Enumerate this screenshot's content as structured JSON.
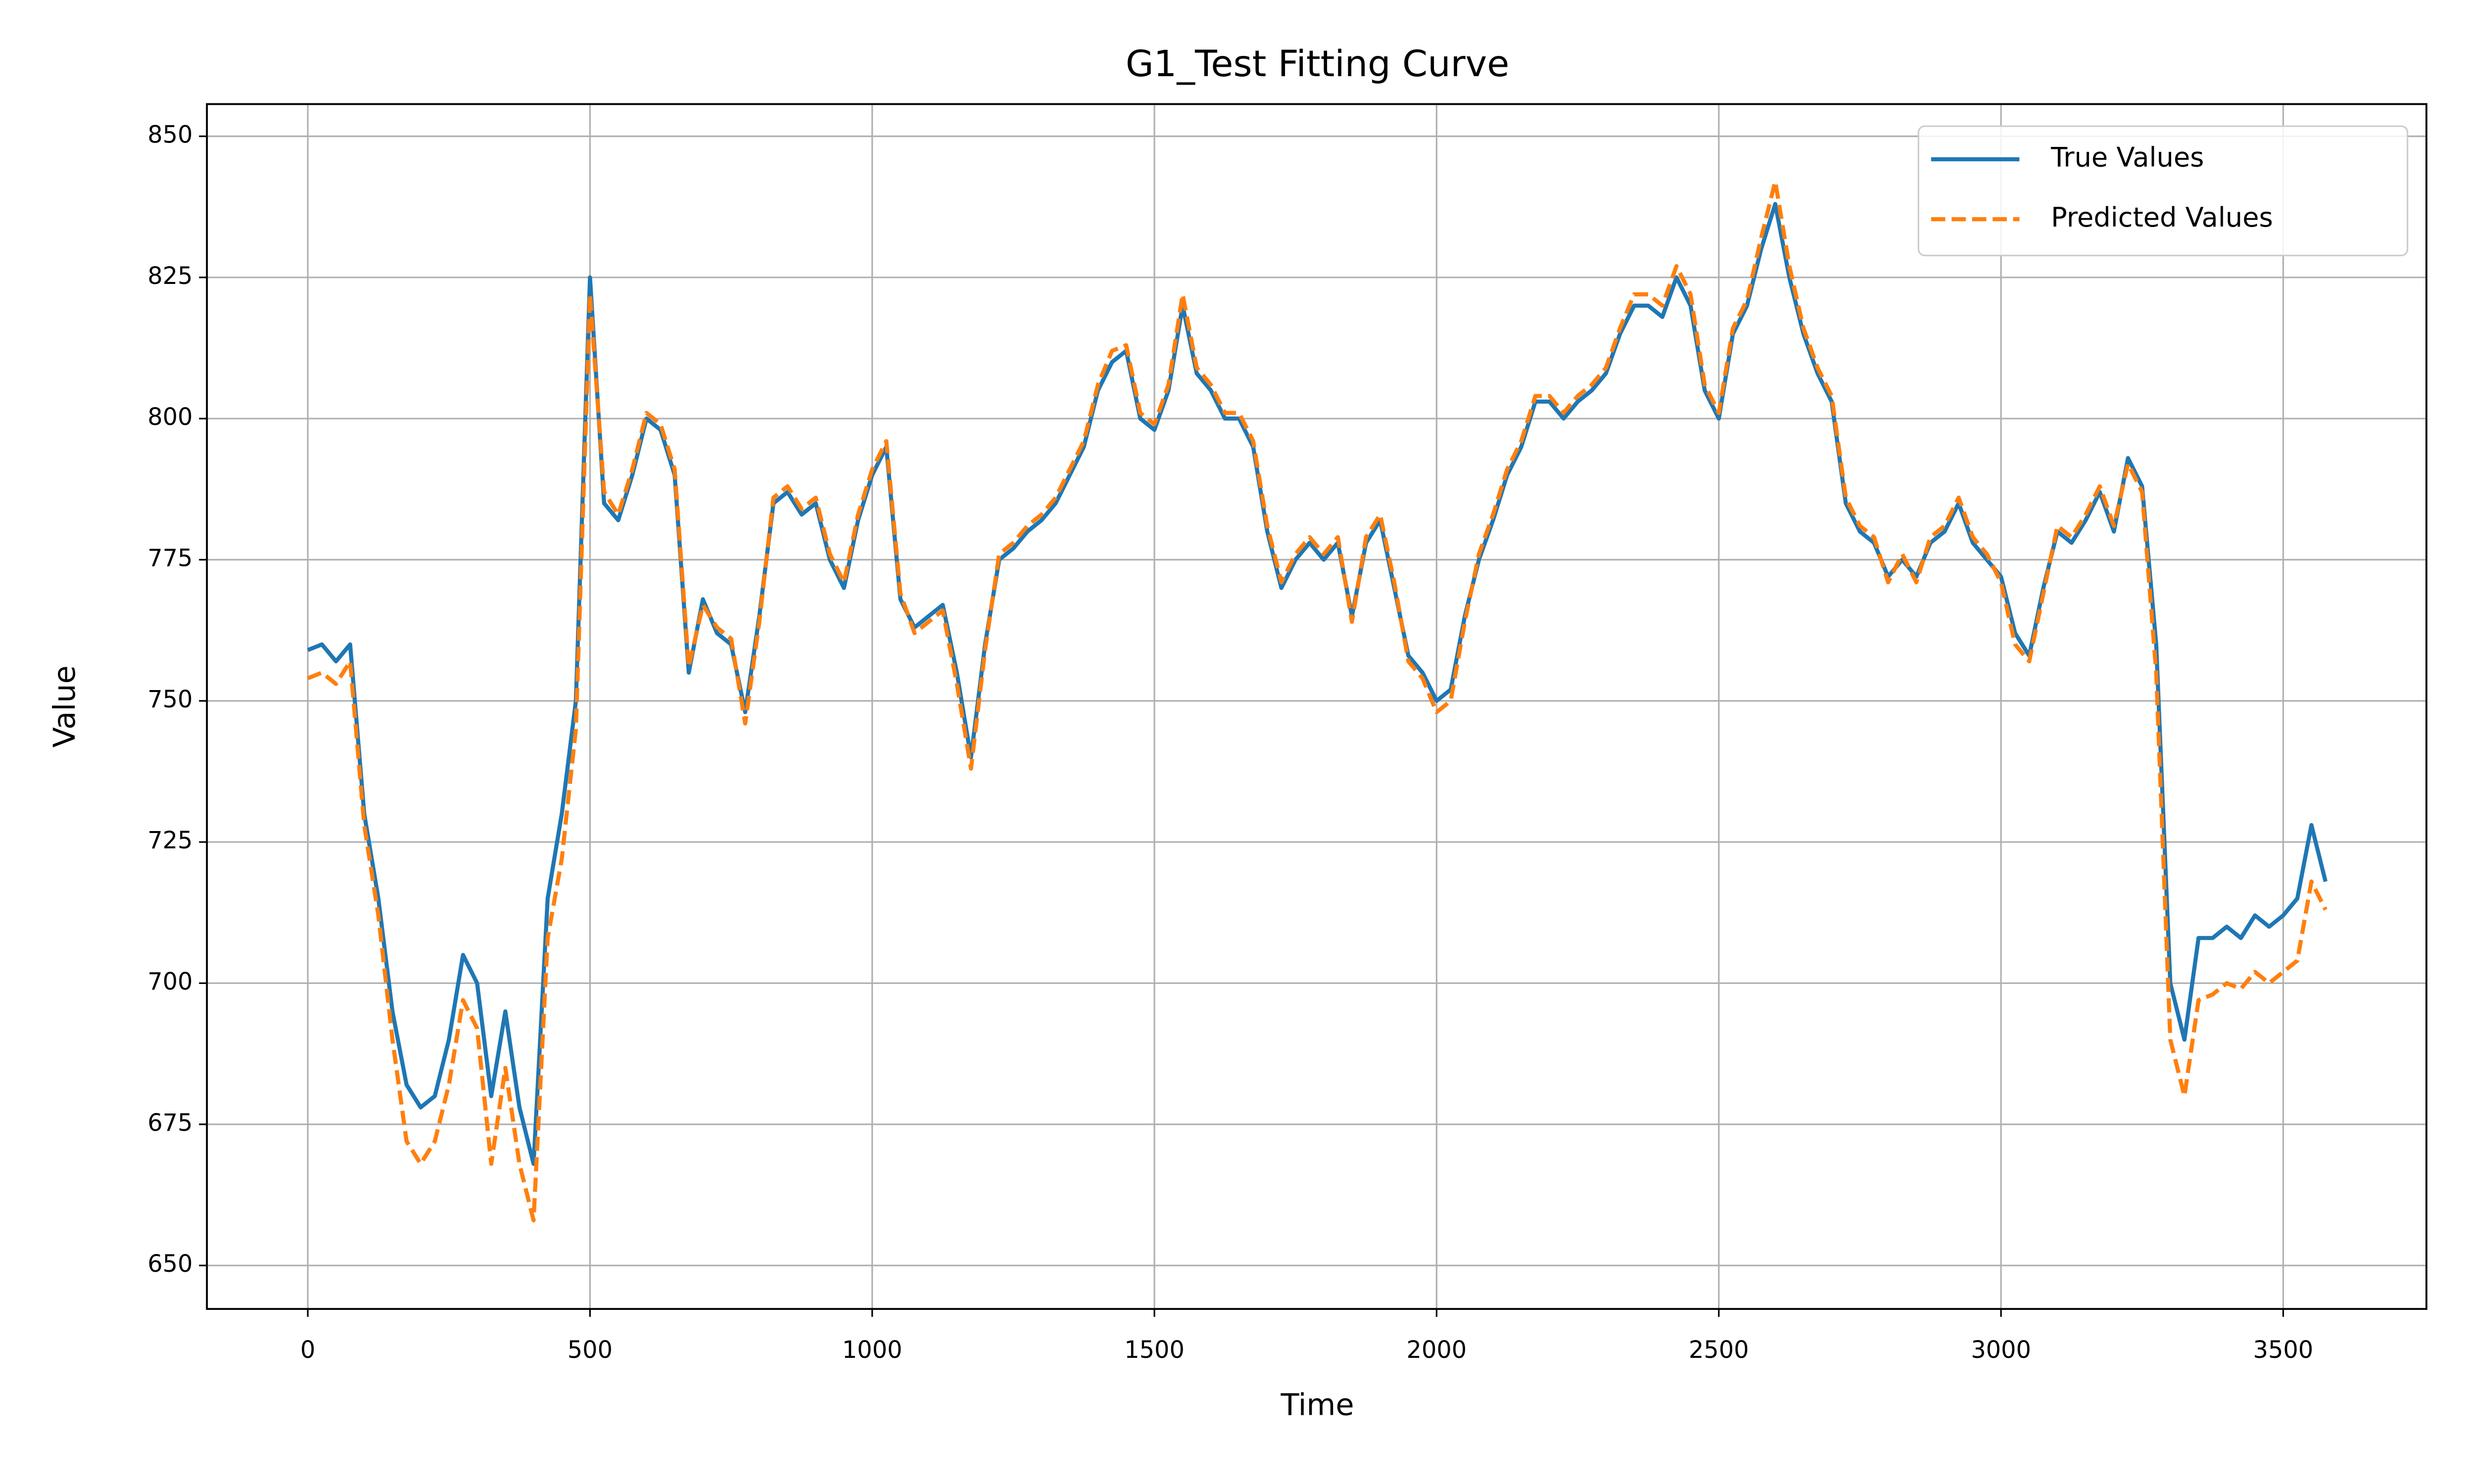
{
  "chart_data": {
    "type": "line",
    "title": "G1_Test Fitting Curve",
    "x_label": "Time",
    "y_label": "Value",
    "x": [
      0,
      25,
      50,
      75,
      100,
      125,
      150,
      175,
      200,
      225,
      250,
      275,
      300,
      325,
      350,
      375,
      400,
      425,
      450,
      475,
      500,
      525,
      550,
      575,
      600,
      625,
      650,
      675,
      700,
      725,
      750,
      775,
      800,
      825,
      850,
      875,
      900,
      925,
      950,
      975,
      1000,
      1025,
      1050,
      1075,
      1100,
      1125,
      1150,
      1175,
      1200,
      1225,
      1250,
      1275,
      1300,
      1325,
      1350,
      1375,
      1400,
      1425,
      1450,
      1475,
      1500,
      1525,
      1550,
      1575,
      1600,
      1625,
      1650,
      1675,
      1700,
      1725,
      1750,
      1775,
      1800,
      1825,
      1850,
      1875,
      1900,
      1925,
      1950,
      1975,
      2000,
      2025,
      2050,
      2075,
      2100,
      2125,
      2150,
      2175,
      2200,
      2225,
      2250,
      2275,
      2300,
      2325,
      2350,
      2375,
      2400,
      2425,
      2450,
      2475,
      2500,
      2525,
      2550,
      2575,
      2600,
      2625,
      2650,
      2675,
      2700,
      2725,
      2750,
      2775,
      2800,
      2825,
      2850,
      2875,
      2900,
      2925,
      2950,
      2975,
      3000,
      3025,
      3050,
      3075,
      3100,
      3125,
      3150,
      3175,
      3200,
      3225,
      3250,
      3275,
      3300,
      3325,
      3350,
      3375,
      3400,
      3425,
      3450,
      3475,
      3500,
      3525,
      3550,
      3575
    ],
    "series": [
      {
        "name": "True Values",
        "color": "#1f77b4",
        "dashed": false,
        "values": [
          759,
          760,
          757,
          760,
          730,
          715,
          695,
          682,
          678,
          680,
          690,
          705,
          700,
          680,
          695,
          678,
          668,
          715,
          730,
          750,
          825,
          785,
          782,
          790,
          800,
          798,
          790,
          755,
          768,
          762,
          760,
          748,
          765,
          785,
          787,
          783,
          785,
          775,
          770,
          782,
          790,
          795,
          768,
          763,
          765,
          767,
          755,
          740,
          760,
          775,
          777,
          780,
          782,
          785,
          790,
          795,
          805,
          810,
          812,
          800,
          798,
          805,
          820,
          808,
          805,
          800,
          800,
          795,
          780,
          770,
          775,
          778,
          775,
          778,
          765,
          778,
          782,
          770,
          758,
          755,
          750,
          752,
          765,
          775,
          782,
          790,
          795,
          803,
          803,
          800,
          803,
          805,
          808,
          815,
          820,
          820,
          818,
          825,
          820,
          805,
          800,
          815,
          820,
          830,
          838,
          825,
          815,
          808,
          803,
          785,
          780,
          778,
          772,
          775,
          772,
          778,
          780,
          785,
          778,
          775,
          772,
          762,
          758,
          770,
          780,
          778,
          782,
          787,
          780,
          793,
          788,
          760,
          700,
          690,
          708,
          708,
          710,
          708,
          712,
          710,
          712,
          715,
          728,
          718
        ]
      },
      {
        "name": "Predicted Values",
        "color": "#ff7f0e",
        "dashed": true,
        "values": [
          754,
          755,
          753,
          757,
          728,
          712,
          690,
          672,
          668,
          672,
          682,
          697,
          692,
          668,
          685,
          668,
          658,
          708,
          722,
          745,
          822,
          787,
          783,
          791,
          801,
          799,
          791,
          756,
          767,
          763,
          761,
          746,
          764,
          786,
          788,
          784,
          786,
          776,
          771,
          783,
          791,
          796,
          769,
          762,
          764,
          766,
          753,
          738,
          759,
          776,
          778,
          781,
          783,
          786,
          791,
          796,
          806,
          812,
          813,
          801,
          799,
          806,
          822,
          809,
          806,
          801,
          801,
          796,
          781,
          771,
          776,
          779,
          776,
          779,
          764,
          779,
          783,
          771,
          757,
          754,
          748,
          750,
          764,
          776,
          783,
          791,
          796,
          804,
          804,
          801,
          804,
          806,
          809,
          816,
          822,
          822,
          820,
          827,
          822,
          806,
          801,
          816,
          821,
          832,
          842,
          827,
          816,
          809,
          804,
          786,
          781,
          779,
          771,
          776,
          771,
          779,
          781,
          786,
          779,
          776,
          771,
          760,
          757,
          769,
          781,
          779,
          783,
          788,
          781,
          792,
          787,
          755,
          690,
          680,
          697,
          698,
          700,
          699,
          702,
          700,
          702,
          704,
          718,
          713
        ]
      }
    ],
    "xlim": [
      -178.75,
      3753.75
    ],
    "ylim": [
      642.3,
      855.7
    ],
    "xticks": [
      0,
      500,
      1000,
      1500,
      2000,
      2500,
      3000,
      3500
    ],
    "yticks": [
      650,
      675,
      700,
      725,
      750,
      775,
      800,
      825,
      850
    ],
    "grid": true,
    "legend": "upper right"
  }
}
